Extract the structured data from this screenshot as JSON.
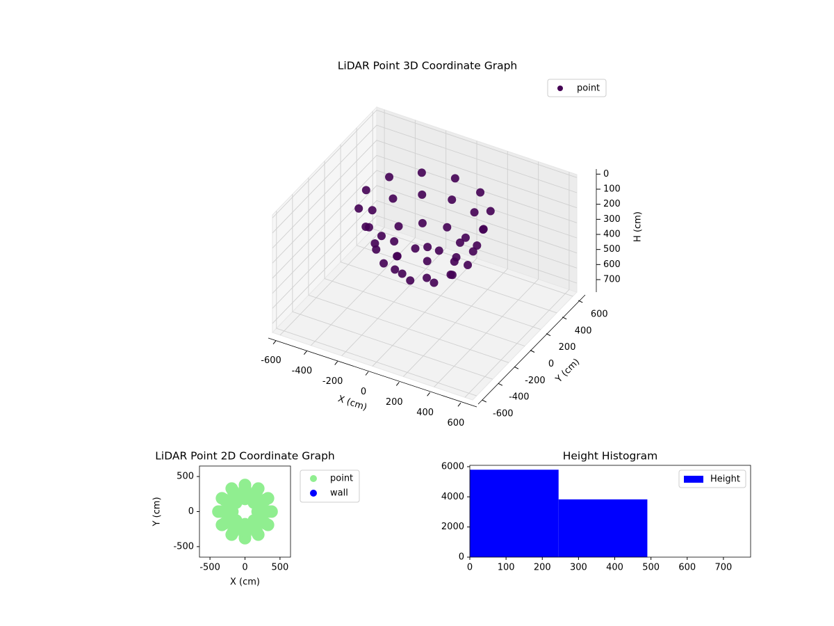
{
  "chart_data": [
    {
      "type": "scatter3d",
      "title": "LiDAR Point 3D Coordinate Graph",
      "xlabel": "X (cm)",
      "ylabel": "Y (cm)",
      "zlabel": "H (cm)",
      "xlim": [
        -650,
        650
      ],
      "ylim": [
        -650,
        650
      ],
      "zlim": [
        -20,
        760
      ],
      "z_inverted": true,
      "xticks": [
        -600,
        -400,
        -200,
        0,
        200,
        400,
        600
      ],
      "yticks": [
        -600,
        -400,
        -200,
        0,
        200,
        400,
        600
      ],
      "zticks": [
        0,
        100,
        200,
        300,
        400,
        500,
        600,
        700
      ],
      "grid": true,
      "legend": "upper right",
      "series": [
        {
          "name": "point",
          "color": "#440154",
          "x": [
            380,
            329,
            190,
            0,
            -190,
            -329,
            -380,
            -329,
            -190,
            0,
            190,
            329,
            340,
            294,
            170,
            0,
            -170,
            -294,
            -340,
            -294,
            -170,
            0,
            170,
            294,
            280,
            242,
            140,
            0,
            -140,
            -242,
            -280,
            -242,
            -140,
            0,
            140,
            242,
            180,
            127,
            0,
            -127,
            -180,
            -127,
            0,
            127
          ],
          "y": [
            0,
            190,
            329,
            380,
            329,
            190,
            0,
            -190,
            -329,
            -380,
            -329,
            -190,
            0,
            170,
            294,
            340,
            294,
            170,
            0,
            -170,
            -294,
            -340,
            -294,
            -170,
            0,
            140,
            242,
            280,
            242,
            140,
            0,
            -140,
            -242,
            -280,
            -242,
            -140,
            0,
            127,
            180,
            127,
            0,
            -127,
            -180,
            -127
          ],
          "z": [
            80,
            80,
            80,
            80,
            80,
            80,
            80,
            80,
            80,
            80,
            80,
            80,
            200,
            200,
            200,
            200,
            200,
            200,
            200,
            200,
            200,
            200,
            200,
            200,
            350,
            350,
            350,
            350,
            350,
            350,
            350,
            350,
            350,
            350,
            350,
            350,
            450,
            450,
            450,
            450,
            450,
            450,
            450,
            450
          ]
        }
      ]
    },
    {
      "type": "scatter",
      "title": "LiDAR Point 2D Coordinate Graph",
      "xlabel": "X (cm)",
      "ylabel": "Y (cm)",
      "xlim": [
        -650,
        650
      ],
      "ylim": [
        -650,
        650
      ],
      "xticks": [
        -500,
        0,
        500
      ],
      "yticks": [
        -500,
        0,
        500
      ],
      "grid": false,
      "legend": "outside right",
      "series": [
        {
          "name": "point",
          "color": "#90ee90",
          "x": [
            380,
            329,
            190,
            0,
            -190,
            -329,
            -380,
            -329,
            -190,
            0,
            190,
            329,
            340,
            294,
            170,
            0,
            -170,
            -294,
            -340,
            -294,
            -170,
            0,
            170,
            294,
            280,
            242,
            140,
            0,
            -140,
            -242,
            -280,
            -242,
            -140,
            0,
            140,
            242,
            180,
            127,
            0,
            -127,
            -180,
            -127,
            0,
            127
          ],
          "y": [
            0,
            190,
            329,
            380,
            329,
            190,
            0,
            -190,
            -329,
            -380,
            -329,
            -190,
            0,
            170,
            294,
            340,
            294,
            170,
            0,
            -170,
            -294,
            -340,
            -294,
            -170,
            0,
            140,
            242,
            280,
            242,
            140,
            0,
            -140,
            -242,
            -280,
            -242,
            -140,
            0,
            127,
            180,
            127,
            0,
            -127,
            -180,
            -127
          ]
        },
        {
          "name": "wall",
          "color": "#0000ff",
          "x": [],
          "y": []
        }
      ]
    },
    {
      "type": "histogram",
      "title": "Height Histogram",
      "bins": [
        0,
        245,
        490,
        735
      ],
      "counts": [
        5800,
        3830,
        0
      ],
      "series_name": "Height",
      "color": "#0000ff",
      "xlim": [
        0,
        775
      ],
      "ylim": [
        0,
        6090
      ],
      "xticks": [
        0,
        100,
        200,
        300,
        400,
        500,
        600,
        700
      ],
      "yticks": [
        0,
        2000,
        4000,
        6000
      ],
      "grid": false,
      "legend": "upper right"
    }
  ]
}
